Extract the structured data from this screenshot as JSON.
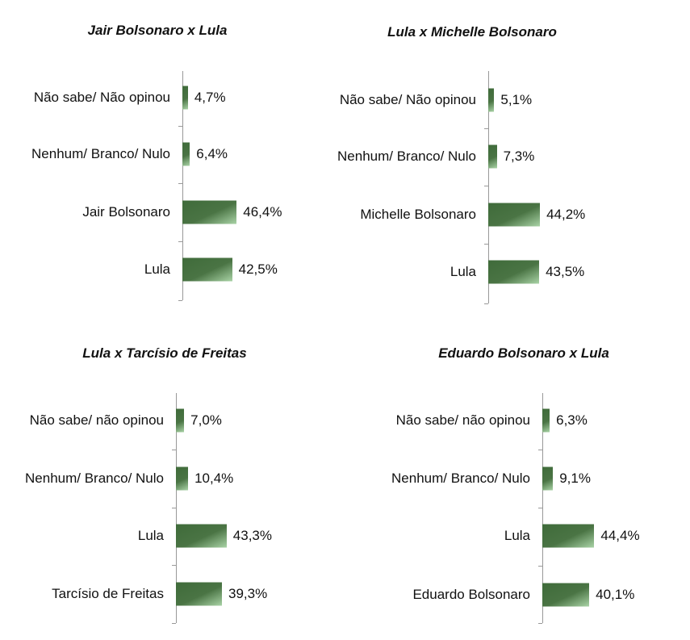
{
  "colors": {
    "bar": "#4a7444"
  },
  "chart_data": [
    {
      "type": "bar",
      "orientation": "horizontal",
      "title": "Jair Bolsonaro x Lula",
      "categories": [
        "Não sabe/ Não opinou",
        "Nenhum/ Branco/ Nulo",
        "Jair Bolsonaro",
        "Lula"
      ],
      "values": [
        4.7,
        6.4,
        46.4,
        42.5
      ],
      "labels": [
        "4,7%",
        "6,4%",
        "46,4%",
        "42,5%"
      ]
    },
    {
      "type": "bar",
      "orientation": "horizontal",
      "title": "Lula x Michelle Bolsonaro",
      "categories": [
        "Não sabe/ Não opinou",
        "Nenhum/ Branco/ Nulo",
        "Michelle Bolsonaro",
        "Lula"
      ],
      "values": [
        5.1,
        7.3,
        44.2,
        43.5
      ],
      "labels": [
        "5,1%",
        "7,3%",
        "44,2%",
        "43,5%"
      ]
    },
    {
      "type": "bar",
      "orientation": "horizontal",
      "title": "Lula x Tarcísio de Freitas",
      "categories": [
        "Não sabe/ não opinou",
        "Nenhum/ Branco/ Nulo",
        "Lula",
        "Tarcísio de Freitas"
      ],
      "values": [
        7.0,
        10.4,
        43.3,
        39.3
      ],
      "labels": [
        "7,0%",
        "10,4%",
        "43,3%",
        "39,3%"
      ]
    },
    {
      "type": "bar",
      "orientation": "horizontal",
      "title": "Eduardo Bolsonaro x Lula",
      "categories": [
        "Não sabe/ não opinou",
        "Nenhum/ Branco/ Nulo",
        "Lula",
        "Eduardo Bolsonaro"
      ],
      "values": [
        6.3,
        9.1,
        44.4,
        40.1
      ],
      "labels": [
        "6,3%",
        "9,1%",
        "44,4%",
        "40,1%"
      ]
    }
  ]
}
